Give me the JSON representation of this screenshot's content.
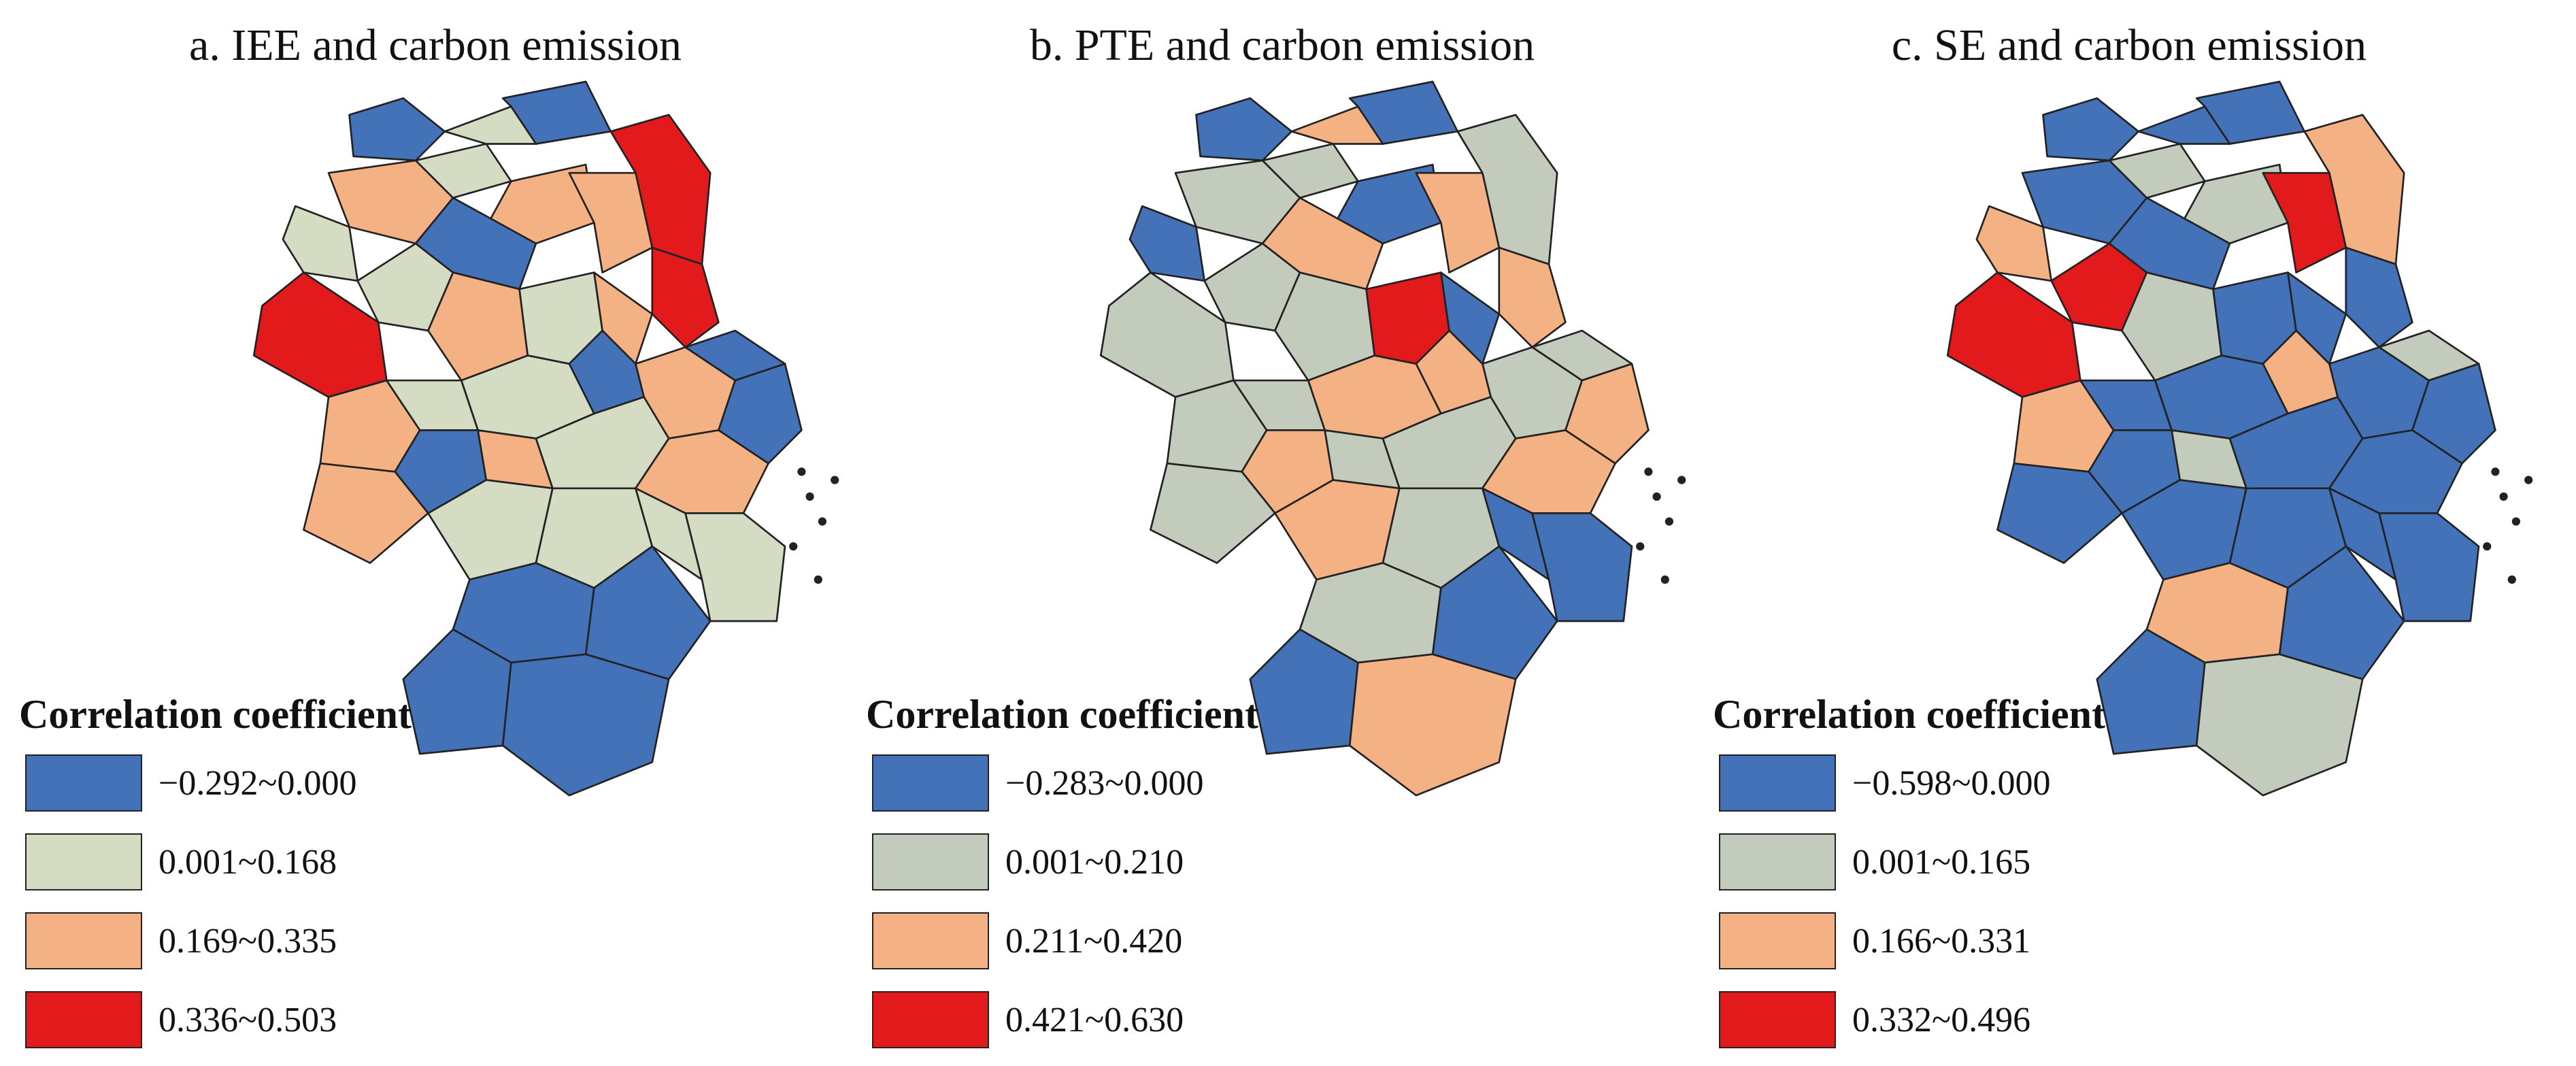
{
  "panels": [
    {
      "id": "a",
      "title": "a. IEE and carbon emission",
      "legend_title": "Correlation coefficient",
      "classes": [
        {
          "label": "−0.292~0.000",
          "color": "#4472b8"
        },
        {
          "label": "0.001~0.168",
          "color": "#d4dcc4"
        },
        {
          "label": "0.169~0.335",
          "color": "#f4b183"
        },
        {
          "label": "0.336~0.503",
          "color": "#e31a1c"
        }
      ],
      "region_classes": [
        2,
        1,
        0,
        1,
        1,
        0,
        3,
        3,
        2,
        2,
        1,
        0,
        3,
        2,
        1,
        2,
        2,
        0,
        0,
        0,
        1,
        2,
        1,
        0,
        2,
        1,
        2,
        2,
        1,
        1,
        1,
        1,
        0,
        0,
        0,
        0
      ]
    },
    {
      "id": "b",
      "title": "b. PTE and carbon emission",
      "legend_title": "Correlation coefficient",
      "classes": [
        {
          "label": "−0.283~0.000",
          "color": "#4472b8"
        },
        {
          "label": "0.001~0.210",
          "color": "#c3cbbd"
        },
        {
          "label": "0.211~0.420",
          "color": "#f4b183"
        },
        {
          "label": "0.421~0.630",
          "color": "#e31a1c"
        }
      ],
      "region_classes": [
        1,
        0,
        0,
        1,
        2,
        0,
        1,
        2,
        0,
        2,
        1,
        2,
        1,
        1,
        3,
        0,
        1,
        2,
        1,
        2,
        2,
        1,
        1,
        2,
        1,
        1,
        2,
        1,
        2,
        1,
        0,
        0,
        1,
        0,
        0,
        2
      ]
    },
    {
      "id": "c",
      "title": "c. SE and carbon emission",
      "legend_title": "Correlation coefficient",
      "classes": [
        {
          "label": "−0.598~0.000",
          "color": "#4472b8"
        },
        {
          "label": "0.001~0.165",
          "color": "#c3cbbd"
        },
        {
          "label": "0.166~0.331",
          "color": "#f4b183"
        },
        {
          "label": "0.332~0.496",
          "color": "#e31a1c"
        }
      ],
      "region_classes": [
        0,
        2,
        0,
        1,
        0,
        0,
        2,
        0,
        1,
        3,
        3,
        0,
        3,
        1,
        0,
        0,
        0,
        2,
        1,
        0,
        0,
        2,
        0,
        0,
        1,
        0,
        0,
        0,
        0,
        0,
        0,
        0,
        2,
        0,
        0,
        1
      ]
    }
  ]
}
